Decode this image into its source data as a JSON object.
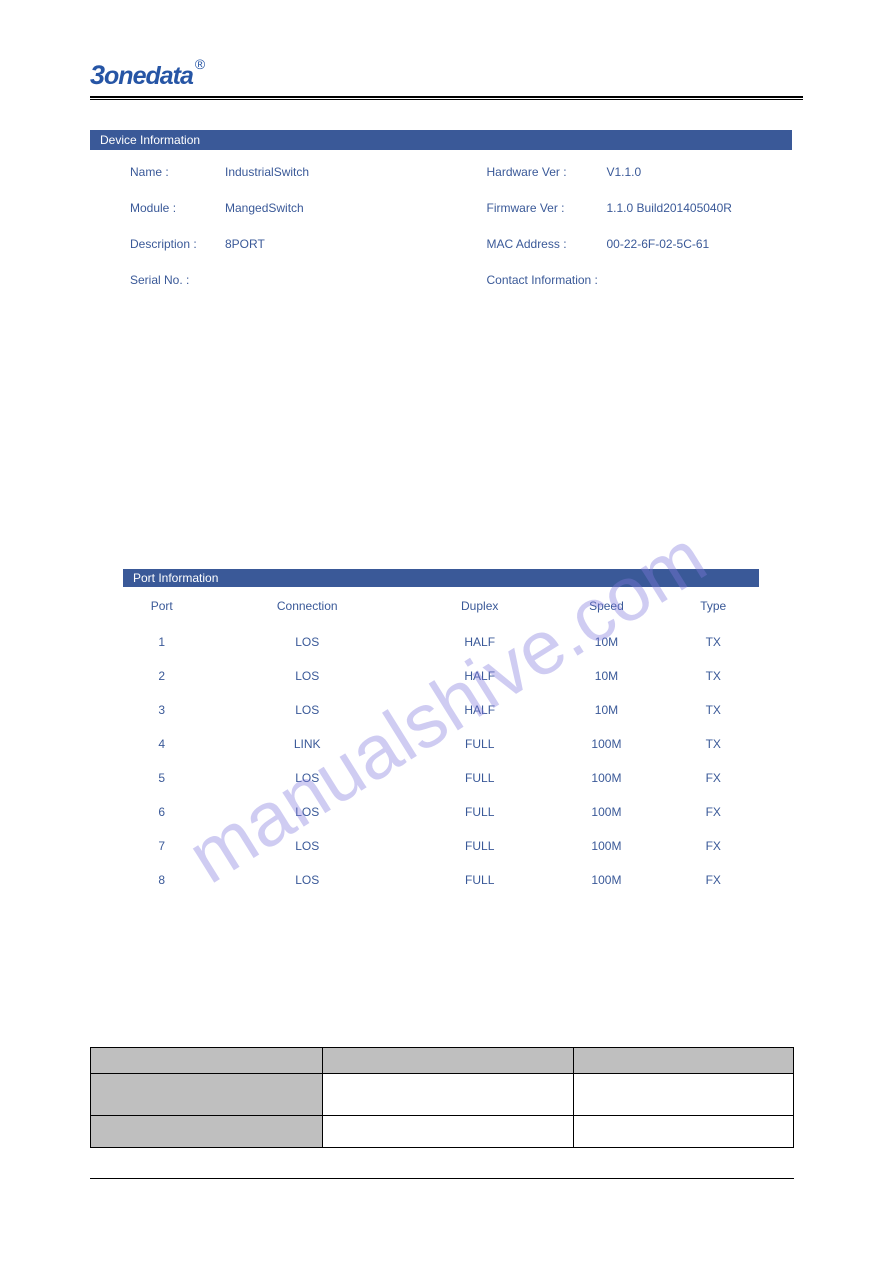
{
  "logo": {
    "text": "3onedata",
    "registered": "®"
  },
  "section1": {
    "title": "Device Information",
    "left": [
      {
        "label": "Name :",
        "value": "IndustrialSwitch"
      },
      {
        "label": "Module :",
        "value": "MangedSwitch"
      },
      {
        "label": "Description :",
        "value": "8PORT"
      },
      {
        "label": "Serial No. :",
        "value": ""
      }
    ],
    "right": [
      {
        "label": "Hardware Ver :",
        "value": "V1.1.0"
      },
      {
        "label": "Firmware Ver :",
        "value": "1.1.0 Build201405040R"
      },
      {
        "label": "MAC Address :",
        "value": "00-22-6F-02-5C-61"
      },
      {
        "label": "Contact Information :",
        "value": ""
      }
    ]
  },
  "section2": {
    "title": "Port Information",
    "columns": [
      "Port",
      "Connection",
      "Duplex",
      "Speed",
      "Type"
    ],
    "rows": [
      [
        "1",
        "LOS",
        "HALF",
        "10M",
        "TX"
      ],
      [
        "2",
        "LOS",
        "HALF",
        "10M",
        "TX"
      ],
      [
        "3",
        "LOS",
        "HALF",
        "10M",
        "TX"
      ],
      [
        "4",
        "LINK",
        "FULL",
        "100M",
        "TX"
      ],
      [
        "5",
        "LOS",
        "FULL",
        "100M",
        "FX"
      ],
      [
        "6",
        "LOS",
        "FULL",
        "100M",
        "FX"
      ],
      [
        "7",
        "LOS",
        "FULL",
        "100M",
        "FX"
      ],
      [
        "8",
        "LOS",
        "FULL",
        "100M",
        "FX"
      ]
    ]
  },
  "watermark": "manualshive.com",
  "colors": {
    "header_bar": "#3a5998",
    "text": "#3a5998",
    "logo": "#2655a5",
    "gray_cell": "#bfbfbf",
    "watermark": "rgba(130,120,220,0.38)"
  }
}
